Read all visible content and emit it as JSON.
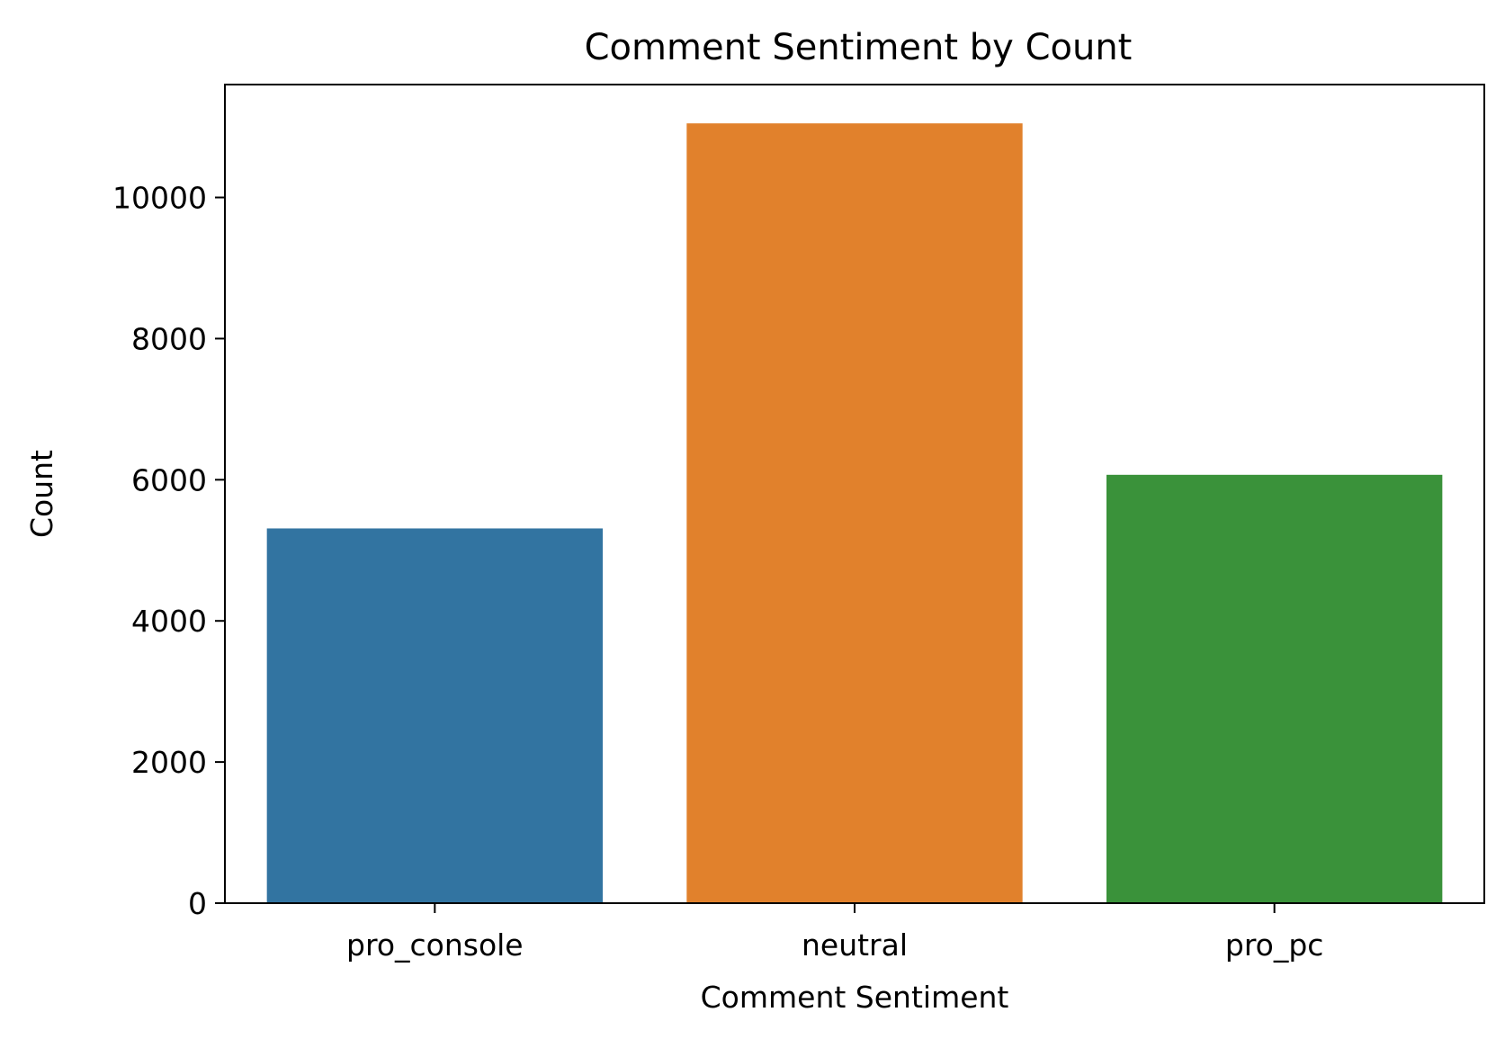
{
  "chart_data": {
    "type": "bar",
    "title": "Comment Sentiment by Count",
    "xlabel": "Comment Sentiment",
    "ylabel": "Count",
    "categories": [
      "pro_console",
      "neutral",
      "pro_pc"
    ],
    "values": [
      5310,
      11050,
      6070
    ],
    "colors": [
      "#3274a1",
      "#e1812c",
      "#3a923a"
    ],
    "ylim": [
      0,
      11600
    ],
    "yticks": [
      0,
      2000,
      4000,
      6000,
      8000,
      10000
    ],
    "grid": false,
    "legend": "none"
  }
}
